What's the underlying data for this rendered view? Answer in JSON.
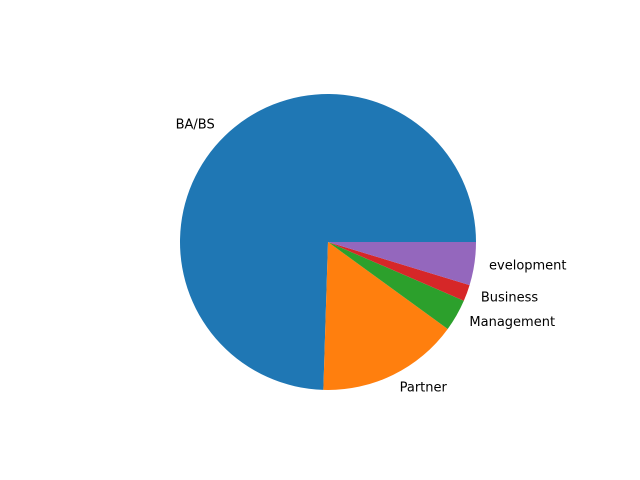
{
  "chart_data": {
    "type": "pie",
    "title": "",
    "start_angle_deg": 0,
    "direction": "counterclockwise",
    "slices": [
      {
        "label": "BA/BS",
        "value": 74.5,
        "color": "#1f77b4"
      },
      {
        "label": "Partner",
        "value": 15.5,
        "color": "#ff7f0e"
      },
      {
        "label": "Management",
        "value": 3.5,
        "color": "#2ca02c"
      },
      {
        "label": "Business",
        "value": 1.8,
        "color": "#d62728"
      },
      {
        "label": "evelopment",
        "value": 4.7,
        "color": "#9467bd"
      }
    ]
  }
}
